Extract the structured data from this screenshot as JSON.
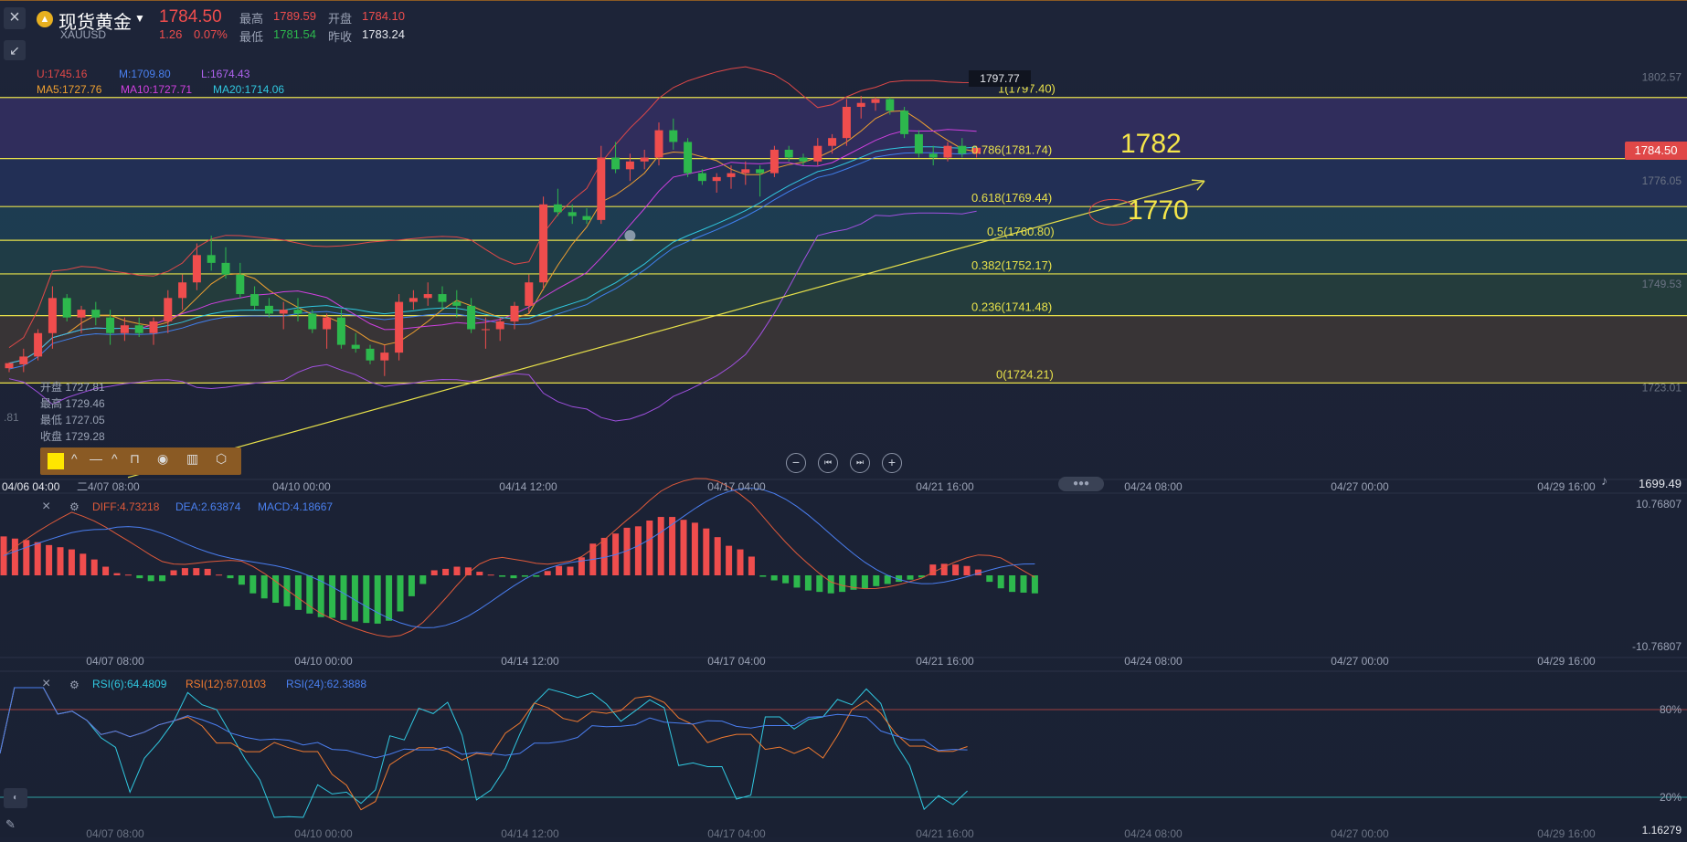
{
  "header": {
    "title": "现货黄金",
    "symbol": "XAUUSD",
    "price": "1784.50",
    "change": "1.26",
    "change_pct": "0.07%",
    "high_label": "最高",
    "high": "1789.59",
    "open_label": "开盘",
    "open": "1784.10",
    "low_label": "最低",
    "low": "1781.54",
    "prev_label": "昨收",
    "prev": "1783.24"
  },
  "indicators": {
    "boll_u": "U:1745.16",
    "boll_m": "M:1709.80",
    "boll_l": "L:1674.43",
    "ma5": "MA5:1727.76",
    "ma10": "MA10:1727.71",
    "ma20": "MA20:1714.06"
  },
  "ohlc_panel": {
    "open": "开盘 1727.81",
    "high": "最高 1729.46",
    "low": "最低 1727.05",
    "close": "收盘 1729.28",
    "left_value": ".81"
  },
  "macd": {
    "diff": "DIFF:4.73218",
    "dea": "DEA:2.63874",
    "macd": "MACD:4.18667",
    "max": "10.76807",
    "min": "-10.76807"
  },
  "rsi": {
    "rsi6": "RSI(6):64.4809",
    "rsi12": "RSI(12):67.0103",
    "rsi24": "RSI(24):62.3888",
    "upper": "80%",
    "lower": "20%",
    "corner": "1.16279"
  },
  "main_axis": {
    "top_value": "1797.77",
    "price_ticks": [
      "1802.57",
      "1776.05",
      "1749.53",
      "1723.01"
    ],
    "current_price": "1784.50",
    "bottom_value": "1699.49",
    "first_time": "04/06 04:00",
    "first_time_suffix": "二4/07 08:00",
    "time_labels": [
      "04/10 00:00",
      "04/14 12:00",
      "04/17 04:00",
      "04/21 16:00",
      "04/24 08:00",
      "04/27 00:00",
      "04/29 16:00"
    ],
    "sub_time_labels": [
      "04/07 08:00",
      "04/10 00:00",
      "04/14 12:00",
      "04/17 04:00",
      "04/21 16:00",
      "04/24 08:00",
      "04/27 00:00",
      "04/29 16:00"
    ]
  },
  "fibonacci": [
    {
      "label": "1(1797.40)",
      "price": 1797.4
    },
    {
      "label": "0.786(1781.74)",
      "price": 1781.74
    },
    {
      "label": "0.618(1769.44)",
      "price": 1769.44
    },
    {
      "label": "0.5(1760.80)",
      "price": 1760.8
    },
    {
      "label": "0.382(1752.17)",
      "price": 1752.17
    },
    {
      "label": "0.236(1741.48)",
      "price": 1741.48
    },
    {
      "label": "0(1724.21)",
      "price": 1724.21
    }
  ],
  "annotations": {
    "a1782": "1782",
    "a1770": "1770"
  },
  "colors": {
    "up": "#ef4d4d",
    "down": "#2db84d",
    "fib": "#e8e14a",
    "ma5": "#f0a030",
    "ma10": "#d040e0",
    "ma20": "#30c8e0",
    "boll": "#e04848",
    "bollm": "#4080f0",
    "diff": "#e05a3a",
    "dea": "#4a7ef0"
  },
  "chart_data": [
    {
      "type": "candlestick",
      "title": "现货黄金 XAUUSD",
      "y_range": [
        1699.49,
        1806
      ],
      "candles": [
        [
          1728,
          1729.5,
          1727,
          1729.3
        ],
        [
          1729,
          1733,
          1727,
          1731
        ],
        [
          1731,
          1738,
          1730,
          1737
        ],
        [
          1737,
          1749,
          1733,
          1746
        ],
        [
          1746,
          1747,
          1740,
          1741
        ],
        [
          1741,
          1744,
          1737,
          1743
        ],
        [
          1743,
          1745,
          1739,
          1741
        ],
        [
          1741,
          1743,
          1734,
          1737
        ],
        [
          1737,
          1741,
          1735,
          1739
        ],
        [
          1739,
          1741,
          1736,
          1737
        ],
        [
          1737,
          1741,
          1734,
          1740
        ],
        [
          1740,
          1748,
          1737,
          1746
        ],
        [
          1746,
          1752,
          1743,
          1750
        ],
        [
          1750,
          1760,
          1748,
          1757
        ],
        [
          1757,
          1762,
          1753,
          1755
        ],
        [
          1755,
          1759,
          1751,
          1752
        ],
        [
          1752,
          1755,
          1746,
          1747
        ],
        [
          1747,
          1749,
          1743,
          1744
        ],
        [
          1744,
          1746,
          1741,
          1742
        ],
        [
          1742,
          1745,
          1738,
          1743
        ],
        [
          1743,
          1746,
          1740,
          1742
        ],
        [
          1742,
          1743,
          1737,
          1738
        ],
        [
          1738,
          1742,
          1733,
          1741
        ],
        [
          1741,
          1743,
          1733,
          1734
        ],
        [
          1734,
          1737,
          1732,
          1733
        ],
        [
          1733,
          1734,
          1729,
          1730
        ],
        [
          1730,
          1734,
          1726,
          1732
        ],
        [
          1732,
          1747,
          1730,
          1745
        ],
        [
          1745,
          1748,
          1743,
          1746
        ],
        [
          1746,
          1750,
          1744,
          1747
        ],
        [
          1747,
          1749,
          1743,
          1745
        ],
        [
          1745,
          1748,
          1741,
          1744
        ],
        [
          1744,
          1746,
          1737,
          1738
        ],
        [
          1738,
          1741,
          1733,
          1738
        ],
        [
          1738,
          1741,
          1735,
          1740
        ],
        [
          1740,
          1745,
          1738,
          1744
        ],
        [
          1744,
          1752,
          1742,
          1750
        ],
        [
          1750,
          1772,
          1748,
          1770
        ],
        [
          1770,
          1774,
          1767,
          1768
        ],
        [
          1768,
          1770,
          1765,
          1767
        ],
        [
          1767,
          1769,
          1765,
          1766
        ],
        [
          1766,
          1785,
          1765,
          1782
        ],
        [
          1782,
          1786,
          1778,
          1779
        ],
        [
          1779,
          1783,
          1776,
          1781
        ],
        [
          1781,
          1784,
          1779,
          1782
        ],
        [
          1782,
          1791,
          1780,
          1789
        ],
        [
          1789,
          1792,
          1784,
          1786
        ],
        [
          1786,
          1787,
          1777,
          1778
        ],
        [
          1778,
          1779,
          1775,
          1776
        ],
        [
          1776,
          1778,
          1773,
          1777
        ],
        [
          1777,
          1780,
          1774,
          1778
        ],
        [
          1778,
          1781,
          1775,
          1779
        ],
        [
          1779,
          1780,
          1772,
          1778
        ],
        [
          1778,
          1785,
          1777,
          1784
        ],
        [
          1784,
          1785,
          1781,
          1782
        ],
        [
          1782,
          1783,
          1780,
          1781
        ],
        [
          1781,
          1787,
          1780,
          1785
        ],
        [
          1785,
          1788,
          1783,
          1787
        ],
        [
          1787,
          1797,
          1785,
          1795
        ],
        [
          1795,
          1797.8,
          1792,
          1796
        ],
        [
          1796,
          1797.5,
          1794,
          1797
        ],
        [
          1797,
          1797.4,
          1793,
          1794
        ],
        [
          1794,
          1795,
          1787,
          1788
        ],
        [
          1788,
          1789,
          1782,
          1783
        ],
        [
          1783,
          1785,
          1780,
          1782
        ],
        [
          1782,
          1786,
          1781,
          1785
        ],
        [
          1785,
          1787,
          1782,
          1783
        ],
        [
          1783,
          1785,
          1782,
          1784.5
        ]
      ],
      "macd_hist": [
        5.4,
        5.1,
        4.9,
        4.6,
        4.2,
        3.9,
        3.6,
        3.0,
        2.2,
        1.2,
        0.3,
        0.1,
        -0.4,
        -0.8,
        -0.8,
        0.7,
        1.0,
        1.0,
        0.9,
        0.1,
        -0.4,
        -1.3,
        -2.5,
        -3.2,
        -3.8,
        -4.3,
        -4.8,
        -5.3,
        -5.8,
        -5.9,
        -6.2,
        -6.4,
        -6.6,
        -6.7,
        -6.3,
        -5.0,
        -2.9,
        -1.2,
        0.7,
        0.9,
        1.2,
        1.1,
        0.5,
        0.1,
        -0.2,
        -0.4,
        -0.2,
        -0.2,
        0.6,
        1.3,
        1.2,
        2.5,
        4.4,
        5.2,
        5.8,
        6.6,
        6.8,
        7.6,
        8.1,
        8.1,
        7.7,
        7.3,
        6.5,
        5.3,
        4.1,
        3.6,
        2.6,
        -0.2,
        -0.7,
        -1.1,
        -1.7,
        -2.1,
        -2.3,
        -2.5,
        -2.3,
        -2.0,
        -1.8,
        -1.5,
        -1.2,
        -0.9,
        -0.6,
        -0.3,
        1.5,
        1.6,
        1.5,
        1.3,
        0.8,
        -0.9,
        -1.8,
        -2.3,
        -2.4,
        -2.5
      ],
      "rsi_range": [
        0,
        100
      ],
      "rsi_levels": [
        20,
        80
      ]
    }
  ],
  "toolbar": {
    "nav": [
      "−",
      "⏮",
      "⏭",
      "+"
    ]
  }
}
